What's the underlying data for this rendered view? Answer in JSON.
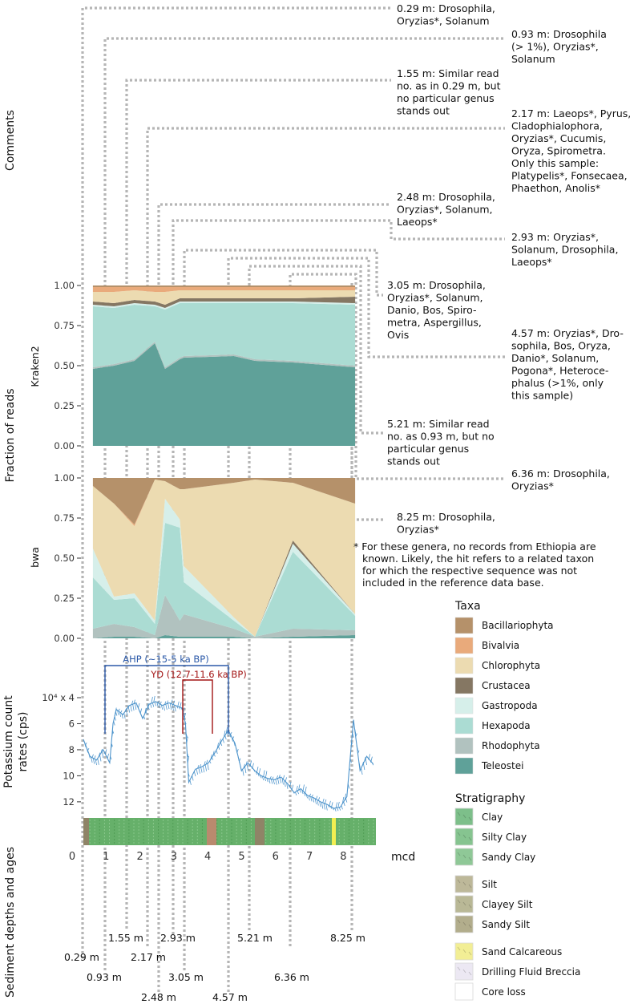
{
  "panels": {
    "comments_ylabel": "Comments",
    "fraction_ylabel": "Fraction of reads",
    "kraken_label": "Kraken2",
    "bwa_label": "bwa",
    "potassium_ylabel_1": "Potassium count",
    "potassium_ylabel_2": "rates (cps)",
    "potassium_ylabel_3": "10⁴ x 4",
    "sediment_ylabel": "Sediment depths and ages",
    "mcd_label": "mcd"
  },
  "comments": [
    {
      "lines": [
        "0.29 m: Drosophila,",
        "Oryzias*, Solanum"
      ]
    },
    {
      "lines": [
        "0.93 m: Drosophila",
        "(> 1%), Oryzias*,",
        "Solanum"
      ]
    },
    {
      "lines": [
        "1.55 m: Similar read",
        "no. as in 0.29 m, but",
        "no particular genus",
        "stands out"
      ]
    },
    {
      "lines": [
        "2.17 m: Laeops*, Pyrus,",
        "Cladophialophora,",
        "Oryzias*, Cucumis,",
        "Oryza, Spirometra.",
        "Only this sample:",
        "Platypelis*, Fonsecaea,",
        "Phaethon, Anolis*"
      ]
    },
    {
      "lines": [
        "2.48 m: Drosophila,",
        "Oryzias*, Solanum,",
        "Laeops*"
      ]
    },
    {
      "lines": [
        "2.93 m: Oryzias*,",
        "Solanum, Drosophila,",
        "Laeops*"
      ]
    },
    {
      "lines": [
        "3.05 m: Drosophila,",
        "Oryzias*, Solanum,",
        "Danio, Bos, Spiro-",
        "metra, Aspergillus,",
        "Ovis"
      ]
    },
    {
      "lines": [
        "4.57 m: Oryzias*, Dro-",
        "sophila, Bos, Oryza,",
        "Danio*, Solanum,",
        "Pogona*, Heteroce-",
        "phalus (>1%, only",
        "this sample)"
      ]
    },
    {
      "lines": [
        "5.21 m: Similar read",
        "no. as 0.93 m, but no",
        "particular genus",
        "stands out"
      ]
    },
    {
      "lines": [
        "6.36 m: Drosophila,",
        "Oryzias*"
      ]
    },
    {
      "lines": [
        "8.25 m: Drosophila,",
        "Oryzias*"
      ]
    }
  ],
  "footnote": [
    "* For these genera, no records from Ethiopia are",
    "known. Likely, the hit refers to a related taxon",
    "for which the respective sequence was not",
    "included in the reference data base."
  ],
  "depth_labels": [
    "0.29 m",
    "0.93 m",
    "1.55 m",
    "2.17 m",
    "2.48 m",
    "2.93 m",
    "3.05 m",
    "4.57 m",
    "5.21 m",
    "6.36 m",
    "8.25 m"
  ],
  "legend": {
    "taxa_title": "Taxa",
    "taxa": [
      {
        "name": "Bacillariophyta",
        "color": "#b5916a"
      },
      {
        "name": "Bivalvia",
        "color": "#e9aa7b"
      },
      {
        "name": "Chlorophyta",
        "color": "#ecdbb1"
      },
      {
        "name": "Crustacea",
        "color": "#857763"
      },
      {
        "name": "Gastropoda",
        "color": "#d6efea"
      },
      {
        "name": "Hexapoda",
        "color": "#abdcd3"
      },
      {
        "name": "Rhodophyta",
        "color": "#b1c2bf"
      },
      {
        "name": "Teleostei",
        "color": "#5fa199"
      }
    ],
    "strat_title": "Stratigraphy",
    "strat": [
      {
        "name": "Clay",
        "color": "#7dbf8a"
      },
      {
        "name": "Silty Clay",
        "color": "#86c490"
      },
      {
        "name": "Sandy Clay",
        "color": "#8fc897"
      },
      {
        "name": "Silt",
        "color": "#bdb899"
      },
      {
        "name": "Clayey Silt",
        "color": "#b9b896"
      },
      {
        "name": "Sandy Silt",
        "color": "#b2ad8c"
      },
      {
        "name": "Sand Calcareous",
        "color": "#f2ee95"
      },
      {
        "name": "Drilling Fluid Breccia",
        "color": "#ece8f3"
      },
      {
        "name": "Core loss",
        "color": "#ffffff"
      }
    ]
  },
  "annotations": {
    "ahp": "AHP (~15-5 ka BP)",
    "yd": "YD (12.7-11.6 ka BP)",
    "ahp_color": "#2b59a8",
    "yd_color": "#a31515"
  },
  "chart_data": [
    {
      "type": "area",
      "title": "Kraken2",
      "xlabel": "mcd",
      "ylabel": "Fraction of reads",
      "ylim": [
        0,
        1
      ],
      "yticks": [
        "0.00",
        "0.25",
        "0.50",
        "0.75",
        "1.00"
      ],
      "x": [
        0.29,
        0.93,
        1.55,
        2.17,
        2.48,
        2.93,
        3.05,
        4.57,
        5.21,
        6.36,
        8.25
      ],
      "series": [
        {
          "name": "Teleostei",
          "values": [
            0.48,
            0.5,
            0.53,
            0.64,
            0.48,
            0.54,
            0.55,
            0.56,
            0.53,
            0.52,
            0.49
          ]
        },
        {
          "name": "Rhodophyta",
          "values": [
            0.01,
            0.01,
            0.01,
            0.01,
            0.01,
            0.01,
            0.01,
            0.01,
            0.01,
            0.01,
            0.01
          ]
        },
        {
          "name": "Hexapoda",
          "values": [
            0.38,
            0.35,
            0.34,
            0.22,
            0.36,
            0.34,
            0.33,
            0.32,
            0.35,
            0.36,
            0.38
          ]
        },
        {
          "name": "Gastropoda",
          "values": [
            0.01,
            0.01,
            0.01,
            0.01,
            0.01,
            0.01,
            0.01,
            0.01,
            0.01,
            0.01,
            0.01
          ]
        },
        {
          "name": "Crustacea",
          "values": [
            0.02,
            0.02,
            0.02,
            0.02,
            0.02,
            0.02,
            0.02,
            0.02,
            0.02,
            0.02,
            0.04
          ]
        },
        {
          "name": "Chlorophyta",
          "values": [
            0.06,
            0.07,
            0.06,
            0.06,
            0.08,
            0.05,
            0.05,
            0.05,
            0.05,
            0.05,
            0.04
          ]
        },
        {
          "name": "Bivalvia",
          "values": [
            0.03,
            0.03,
            0.02,
            0.03,
            0.03,
            0.02,
            0.02,
            0.02,
            0.02,
            0.02,
            0.02
          ]
        },
        {
          "name": "Bacillariophyta",
          "values": [
            0.01,
            0.01,
            0.01,
            0.01,
            0.01,
            0.01,
            0.01,
            0.01,
            0.01,
            0.01,
            0.01
          ]
        }
      ]
    },
    {
      "type": "area",
      "title": "bwa",
      "xlabel": "mcd",
      "ylabel": "Fraction of reads",
      "ylim": [
        0,
        1
      ],
      "yticks": [
        "0.00",
        "0.25",
        "0.50",
        "0.75",
        "1.00"
      ],
      "x": [
        0.29,
        0.93,
        1.55,
        2.17,
        2.48,
        2.93,
        3.05,
        4.57,
        5.21,
        6.36,
        8.25
      ],
      "series": [
        {
          "name": "Teleostei",
          "values": [
            0.0,
            0.01,
            0.01,
            0.0,
            0.02,
            0.01,
            0.01,
            0.01,
            0.0,
            0.01,
            0.02
          ]
        },
        {
          "name": "Rhodophyta",
          "values": [
            0.06,
            0.08,
            0.06,
            0.02,
            0.25,
            0.1,
            0.14,
            0.05,
            0.01,
            0.05,
            0.03
          ]
        },
        {
          "name": "Hexapoda",
          "values": [
            0.32,
            0.15,
            0.18,
            0.07,
            0.45,
            0.58,
            0.2,
            0.05,
            0.0,
            0.48,
            0.09
          ]
        },
        {
          "name": "Gastropoda",
          "values": [
            0.18,
            0.02,
            0.03,
            0.02,
            0.15,
            0.05,
            0.1,
            0.02,
            0.0,
            0.05,
            0.01
          ]
        },
        {
          "name": "Crustacea",
          "values": [
            0.0,
            0.0,
            0.0,
            0.0,
            0.0,
            0.0,
            0.0,
            0.0,
            0.0,
            0.02,
            0.0
          ]
        },
        {
          "name": "Chlorophyta",
          "values": [
            0.39,
            0.58,
            0.42,
            0.88,
            0.11,
            0.19,
            0.48,
            0.84,
            0.98,
            0.36,
            0.69
          ]
        },
        {
          "name": "Bivalvia",
          "values": [
            0.0,
            0.0,
            0.01,
            0.0,
            0.0,
            0.0,
            0.0,
            0.0,
            0.0,
            0.0,
            0.0
          ]
        },
        {
          "name": "Bacillariophyta",
          "values": [
            0.05,
            0.16,
            0.29,
            0.01,
            0.02,
            0.07,
            0.07,
            0.03,
            0.01,
            0.03,
            0.16
          ]
        }
      ]
    },
    {
      "type": "line",
      "title": "Potassium count rates",
      "xlabel": "mcd",
      "ylabel": "Potassium count rates (cps)",
      "ylim": [
        4,
        12.8
      ],
      "yticks": [
        "4",
        "6",
        "8",
        "10",
        "12"
      ],
      "xticks": [
        "0",
        "1",
        "2",
        "3",
        "4",
        "5",
        "6",
        "7",
        "8"
      ],
      "color": "#4f95cc",
      "x": [
        0.0,
        0.2,
        0.4,
        0.6,
        0.8,
        0.9,
        1.0,
        1.2,
        1.4,
        1.6,
        1.8,
        2.0,
        2.2,
        2.4,
        2.6,
        2.8,
        3.0,
        3.1,
        3.2,
        3.4,
        3.6,
        3.8,
        4.0,
        4.2,
        4.4,
        4.6,
        4.8,
        5.0,
        5.2,
        5.4,
        5.6,
        5.8,
        6.0,
        6.2,
        6.4,
        6.6,
        6.8,
        7.0,
        7.2,
        7.4,
        7.6,
        7.8,
        8.0,
        8.2,
        8.4,
        8.6,
        8.8
      ],
      "values": [
        7.2,
        8.5,
        8.8,
        8.0,
        9.0,
        6.0,
        4.9,
        5.3,
        4.6,
        4.4,
        5.6,
        4.5,
        4.3,
        4.6,
        4.4,
        4.6,
        4.8,
        6.0,
        10.5,
        9.5,
        9.3,
        9.0,
        8.2,
        7.3,
        6.5,
        7.5,
        9.6,
        9.0,
        9.6,
        10.0,
        10.2,
        10.3,
        10.1,
        10.6,
        11.3,
        11.0,
        11.5,
        11.7,
        12.0,
        12.2,
        12.5,
        12.4,
        11.6,
        5.7,
        9.6,
        8.5,
        9.1
      ]
    }
  ]
}
